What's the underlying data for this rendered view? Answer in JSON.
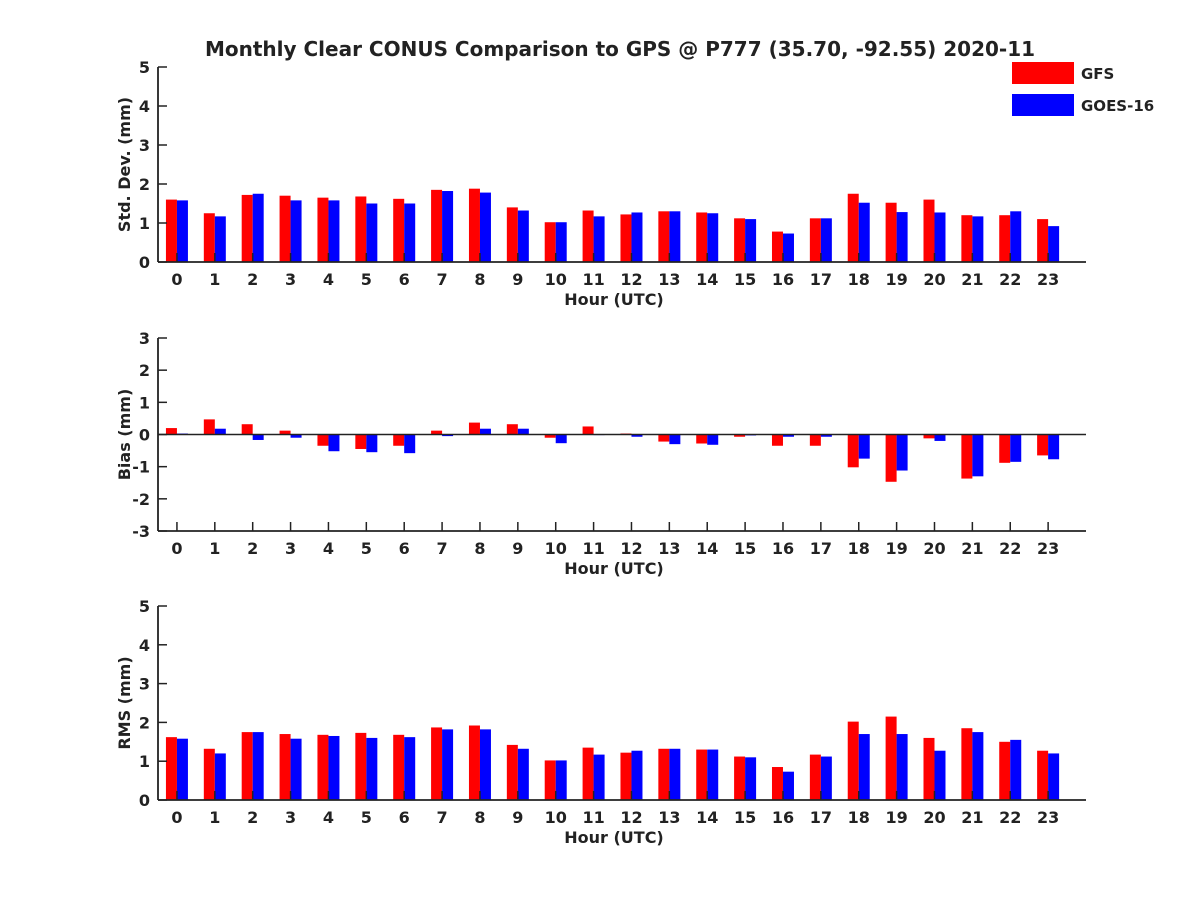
{
  "title": "Monthly Clear CONUS Comparison to GPS @ P777 (35.70, -92.55) 2020-11",
  "colors": {
    "GFS": "#ff0000",
    "GOES-16": "#0000ff",
    "axis": "#222222"
  },
  "legend": {
    "position": "top-right",
    "entries": [
      "GFS",
      "GOES-16"
    ]
  },
  "chart_data": [
    {
      "type": "bar",
      "xlabel": "Hour (UTC)",
      "ylabel": "Std. Dev. (mm)",
      "ylim": [
        0,
        5
      ],
      "yticks": [
        0,
        1,
        2,
        3,
        4,
        5
      ],
      "categories": [
        "0",
        "1",
        "2",
        "3",
        "4",
        "5",
        "6",
        "7",
        "8",
        "9",
        "10",
        "11",
        "12",
        "13",
        "14",
        "15",
        "16",
        "17",
        "18",
        "19",
        "20",
        "21",
        "22",
        "23"
      ],
      "series": [
        {
          "name": "GFS",
          "values": [
            1.6,
            1.25,
            1.72,
            1.7,
            1.65,
            1.68,
            1.62,
            1.85,
            1.88,
            1.4,
            1.02,
            1.32,
            1.22,
            1.3,
            1.27,
            1.12,
            0.78,
            1.12,
            1.75,
            1.52,
            1.6,
            1.2,
            1.2,
            1.1
          ]
        },
        {
          "name": "GOES-16",
          "values": [
            1.58,
            1.17,
            1.75,
            1.58,
            1.58,
            1.5,
            1.5,
            1.82,
            1.78,
            1.32,
            1.02,
            1.17,
            1.27,
            1.3,
            1.25,
            1.1,
            0.73,
            1.12,
            1.52,
            1.28,
            1.27,
            1.17,
            1.3,
            0.92
          ]
        }
      ]
    },
    {
      "type": "bar",
      "xlabel": "Hour (UTC)",
      "ylabel": "Bias (mm)",
      "ylim": [
        -3,
        3
      ],
      "yticks": [
        -3,
        -2,
        -1,
        0,
        1,
        2,
        3
      ],
      "categories": [
        "0",
        "1",
        "2",
        "3",
        "4",
        "5",
        "6",
        "7",
        "8",
        "9",
        "10",
        "11",
        "12",
        "13",
        "14",
        "15",
        "16",
        "17",
        "18",
        "19",
        "20",
        "21",
        "22",
        "23"
      ],
      "series": [
        {
          "name": "GFS",
          "values": [
            0.2,
            0.47,
            0.32,
            0.12,
            -0.35,
            -0.45,
            -0.35,
            0.12,
            0.37,
            0.32,
            -0.1,
            0.25,
            0.03,
            -0.22,
            -0.28,
            -0.07,
            -0.35,
            -0.35,
            -1.02,
            -1.47,
            -0.12,
            -1.37,
            -0.88,
            -0.65
          ]
        },
        {
          "name": "GOES-16",
          "values": [
            0.03,
            0.18,
            -0.17,
            -0.1,
            -0.52,
            -0.55,
            -0.58,
            -0.05,
            0.18,
            0.18,
            -0.27,
            0.0,
            -0.07,
            -0.3,
            -0.32,
            -0.03,
            -0.07,
            -0.07,
            -0.75,
            -1.12,
            -0.2,
            -1.3,
            -0.85,
            -0.77
          ]
        }
      ]
    },
    {
      "type": "bar",
      "xlabel": "Hour (UTC)",
      "ylabel": "RMS (mm)",
      "ylim": [
        0,
        5
      ],
      "yticks": [
        0,
        1,
        2,
        3,
        4,
        5
      ],
      "categories": [
        "0",
        "1",
        "2",
        "3",
        "4",
        "5",
        "6",
        "7",
        "8",
        "9",
        "10",
        "11",
        "12",
        "13",
        "14",
        "15",
        "16",
        "17",
        "18",
        "19",
        "20",
        "21",
        "22",
        "23"
      ],
      "series": [
        {
          "name": "GFS",
          "values": [
            1.62,
            1.32,
            1.75,
            1.7,
            1.68,
            1.73,
            1.68,
            1.87,
            1.92,
            1.42,
            1.02,
            1.35,
            1.22,
            1.32,
            1.3,
            1.12,
            0.85,
            1.17,
            2.02,
            2.15,
            1.6,
            1.85,
            1.5,
            1.27
          ]
        },
        {
          "name": "GOES-16",
          "values": [
            1.58,
            1.2,
            1.75,
            1.58,
            1.65,
            1.6,
            1.62,
            1.82,
            1.82,
            1.32,
            1.02,
            1.17,
            1.27,
            1.32,
            1.3,
            1.1,
            0.73,
            1.12,
            1.7,
            1.7,
            1.27,
            1.75,
            1.55,
            1.2
          ]
        }
      ]
    }
  ]
}
